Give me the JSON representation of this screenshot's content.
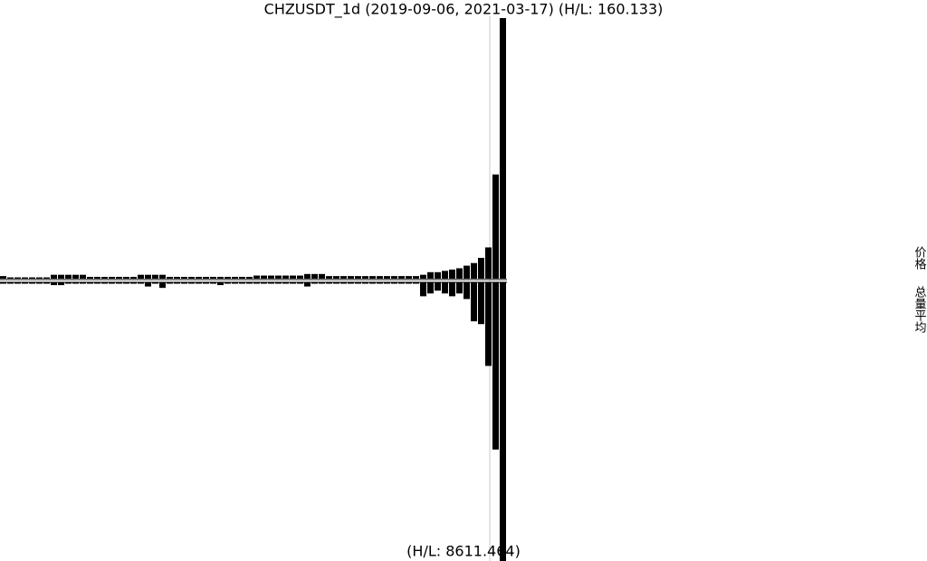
{
  "chart_data": {
    "type": "mirror-bar",
    "title": "CHZUSDT_1d (2019-09-06, 2021-03-17) (H/L: 160.133)",
    "bottom_label": "(H/L: 8611.464)",
    "ylim": [
      0,
      100
    ],
    "series": [
      {
        "name": "价格",
        "color": "#000000",
        "values": [
          1,
          0.5,
          0.5,
          0.5,
          0.5,
          0.5,
          0.5,
          1.5,
          1.5,
          1.5,
          1.5,
          1.5,
          0.7,
          0.7,
          0.7,
          0.7,
          0.7,
          0.7,
          0.7,
          1.5,
          1.5,
          1.5,
          1.5,
          0.7,
          0.7,
          0.7,
          0.7,
          0.7,
          0.7,
          0.7,
          0.7,
          0.7,
          0.7,
          0.7,
          0.7,
          1.2,
          1.2,
          1.2,
          1.2,
          1.2,
          1.2,
          1.2,
          1.8,
          1.8,
          1.8,
          1,
          1,
          1,
          1,
          1,
          1,
          1,
          1,
          1,
          1,
          1,
          1,
          1,
          1.5,
          2.5,
          2.5,
          3,
          3.5,
          4,
          5,
          6,
          8,
          12,
          40,
          100
        ]
      },
      {
        "name": "总量平均",
        "color": "#000000",
        "values": [
          0.5,
          0.5,
          0.5,
          0.5,
          0.5,
          0.5,
          0.5,
          1,
          1,
          0.5,
          0.5,
          0.5,
          0.5,
          0.5,
          0.5,
          0.5,
          0.5,
          0.5,
          0.5,
          0.5,
          1.5,
          0.5,
          2,
          0.5,
          0.5,
          0.5,
          0.5,
          0.5,
          0.5,
          0.5,
          1,
          0.5,
          0.5,
          0.5,
          0.5,
          0.5,
          0.5,
          0.5,
          0.5,
          0.5,
          0.5,
          0.5,
          1.5,
          0.5,
          0.5,
          0.5,
          0.5,
          0.5,
          0.5,
          0.5,
          0.5,
          0.5,
          0.5,
          0.5,
          0.5,
          0.5,
          0.5,
          0.5,
          5,
          4,
          3,
          4,
          5,
          4,
          6,
          14,
          15,
          30,
          60,
          100
        ]
      }
    ]
  }
}
